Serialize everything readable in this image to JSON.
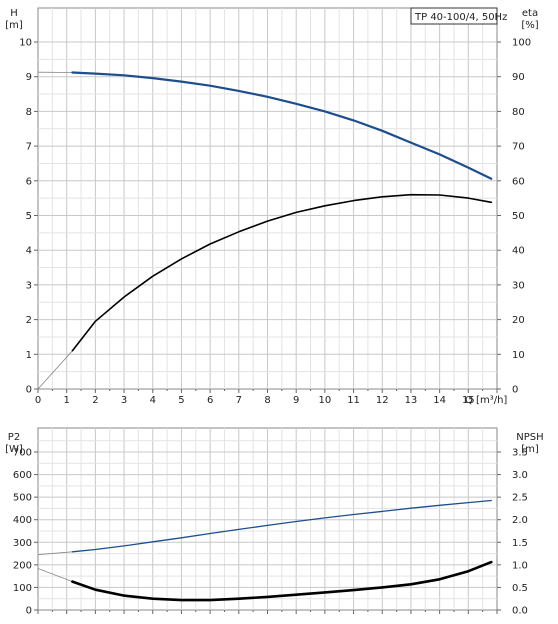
{
  "chart_data": [
    {
      "type": "line",
      "panel": "head-efficiency",
      "legend_label": "TP 40-100/4, 50Hz",
      "legend_placement": "top-right",
      "x_axis": {
        "label": "Q [m³/h]",
        "range": [
          0,
          16
        ],
        "ticks": [
          "0",
          "1",
          "2",
          "3",
          "4",
          "5",
          "6",
          "7",
          "8",
          "9",
          "10",
          "11",
          "12",
          "13",
          "14",
          "15"
        ]
      },
      "left_axis": {
        "title": "H",
        "unit": "[m]",
        "range": [
          0,
          10
        ],
        "ticks": [
          "0",
          "1",
          "2",
          "3",
          "4",
          "5",
          "6",
          "7",
          "8",
          "9",
          "10"
        ]
      },
      "right_axis": {
        "title": "eta",
        "unit": "[%]",
        "range": [
          0,
          100
        ],
        "ticks": [
          "0",
          "10",
          "20",
          "30",
          "40",
          "50",
          "60",
          "70",
          "80",
          "90",
          "100"
        ]
      },
      "grid": true,
      "series": [
        {
          "axis": "left",
          "color": "#1f4e8c",
          "x": [
            0,
            1.2,
            2,
            3,
            4,
            5,
            6,
            7,
            8,
            9,
            10,
            11,
            12,
            13,
            14,
            15,
            15.8
          ],
          "y": [
            9.13,
            9.12,
            9.09,
            9.04,
            8.96,
            8.86,
            8.74,
            8.59,
            8.42,
            8.22,
            8.0,
            7.74,
            7.44,
            7.1,
            6.76,
            6.38,
            6.06
          ],
          "thin_segment_until_x": 1.2
        },
        {
          "axis": "right",
          "color": "#000000",
          "x": [
            0,
            1.2,
            2,
            3,
            4,
            5,
            6,
            7,
            8,
            9,
            10,
            11,
            12,
            13,
            14,
            15,
            15.8
          ],
          "y": [
            0,
            11,
            19.5,
            26.5,
            32.5,
            37.5,
            41.8,
            45.3,
            48.4,
            50.9,
            52.8,
            54.3,
            55.4,
            56.0,
            55.9,
            55.0,
            53.8
          ],
          "thin_segment_until_x": 1.2
        }
      ]
    },
    {
      "type": "line",
      "panel": "power-npsh",
      "x_axis": {
        "range": [
          0,
          16
        ]
      },
      "left_axis": {
        "title": "P2",
        "unit": "[W]",
        "range": [
          0,
          800
        ],
        "ticks": [
          "0",
          "100",
          "200",
          "300",
          "400",
          "500",
          "600",
          "700"
        ]
      },
      "right_axis": {
        "title": "NPSH",
        "unit": "[m]",
        "range": [
          0,
          4
        ],
        "ticks": [
          "0.0",
          "0.5",
          "1.0",
          "1.5",
          "2.0",
          "2.5",
          "3.0",
          "3.5"
        ]
      },
      "grid": true,
      "series": [
        {
          "axis": "left",
          "color": "#1f4e8c",
          "x": [
            0,
            1.2,
            2,
            3,
            4,
            5,
            6,
            7,
            8,
            9,
            10,
            11,
            12,
            13,
            14,
            15,
            15.8
          ],
          "y": [
            245,
            258,
            268,
            284,
            302,
            320,
            339,
            357,
            375,
            392,
            408,
            423,
            437,
            451,
            464,
            476,
            485
          ],
          "thin_segment_until_x": 1.2
        },
        {
          "axis": "right",
          "color": "#000000",
          "x": [
            0,
            1.2,
            2,
            3,
            4,
            5,
            6,
            7,
            8,
            9,
            10,
            11,
            12,
            13,
            14,
            15,
            15.8
          ],
          "y": [
            0.92,
            0.63,
            0.45,
            0.32,
            0.25,
            0.22,
            0.22,
            0.25,
            0.29,
            0.34,
            0.39,
            0.44,
            0.5,
            0.57,
            0.68,
            0.86,
            1.06
          ],
          "bold": true,
          "thin_segment_until_x": 1.2
        }
      ]
    }
  ]
}
